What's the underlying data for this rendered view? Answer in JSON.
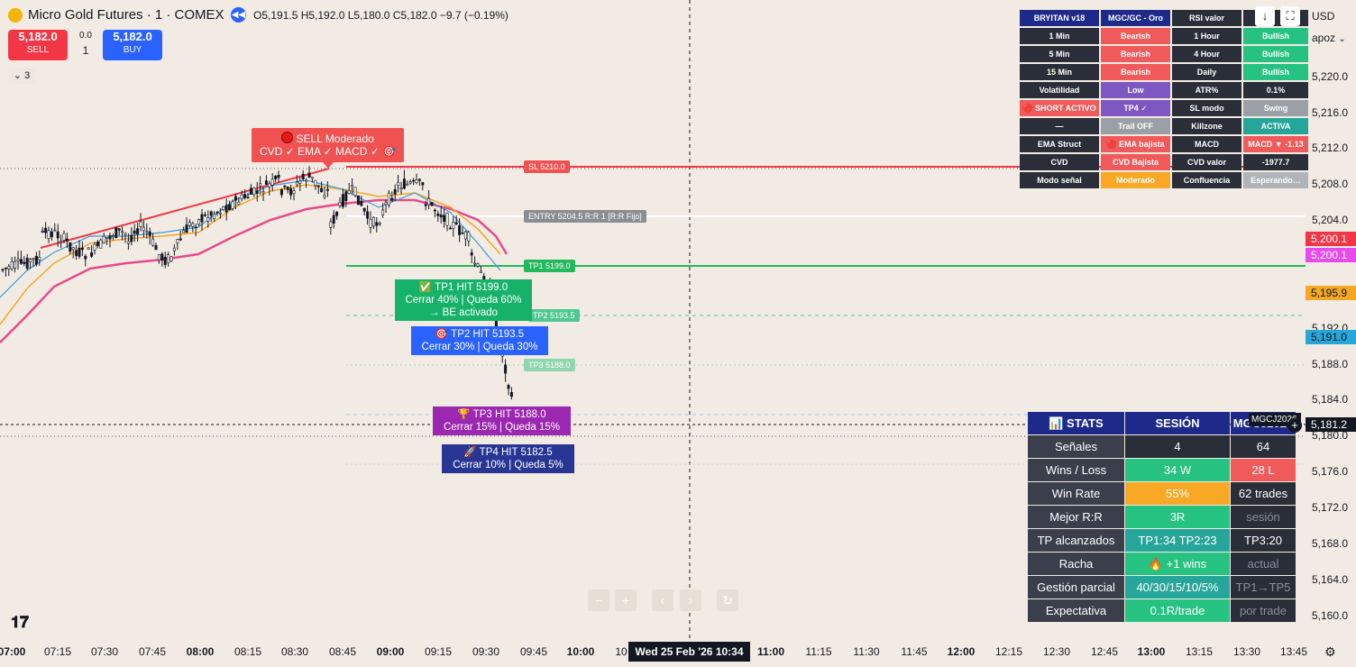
{
  "header": {
    "symbol_title": "Micro Gold Futures · 1 · COMEX",
    "ohlc": "O5,191.5  H5,192.0  L5,180.0  C5,182.0  −9.7 (−0.19%)",
    "sell_price": "5,182.0",
    "sell_label": "SELL",
    "buy_price": "5,182.0",
    "buy_label": "BUY",
    "spread": "0.0",
    "qty": "1",
    "collapsed_count": "3"
  },
  "top_right": {
    "currency": "USD",
    "menu": "apoz"
  },
  "indicator_table": {
    "rows": [
      [
        "BRYITAN v18",
        "MGC/GC - Oro",
        "RSI valor",
        ""
      ],
      [
        "1 Min",
        "Bearish",
        "1 Hour",
        "Bullish"
      ],
      [
        "5 Min",
        "Bearish",
        "4 Hour",
        "Bullish"
      ],
      [
        "15 Min",
        "Bearish",
        "Daily",
        "Bullish"
      ],
      [
        "Volatilidad",
        "Low",
        "ATR%",
        "0.1%"
      ],
      [
        "🔴 SHORT ACTIVO",
        "TP4 ✓",
        "SL modo",
        "Swing"
      ],
      [
        "—",
        "Trail OFF",
        "Killzone",
        "ACTIVA"
      ],
      [
        "EMA Struct",
        "🔴 EMA bajista",
        "MACD",
        "MACD ▼ -1.13"
      ],
      [
        "CVD",
        "CVD Bajista",
        "CVD valor",
        "-1977.7"
      ],
      [
        "Modo señal",
        "Moderado",
        "Confluencia",
        "Esperando…"
      ]
    ]
  },
  "stats_table": {
    "header": [
      "📊 STATS",
      "SESIÓN",
      "MGCJ2026"
    ],
    "rows": [
      [
        "Señales",
        "4",
        "64"
      ],
      [
        "Wins / Loss",
        "34 W",
        "28 L"
      ],
      [
        "Win Rate",
        "55%",
        "62 trades"
      ],
      [
        "Mejor R:R",
        "3R",
        "sesión"
      ],
      [
        "TP alcanzados",
        "TP1:34  TP2:23",
        "TP3:20"
      ],
      [
        "Racha",
        "🔥 +1 wins",
        "actual"
      ],
      [
        "Gestión parcial",
        "40/30/15/10/5%",
        "TP1→TP5"
      ],
      [
        "Expectativa",
        "0.1R/trade",
        "por trade"
      ]
    ]
  },
  "signal": {
    "line1": "SELL  Moderado",
    "line2": "CVD ✓  EMA ✓  MACD ✓  🎯"
  },
  "levels": {
    "sl": "SL 5210.0",
    "entry": "ENTRY 5204.5  R:R 1  [R:R Fijo]",
    "tp1": "TP1 5199.0",
    "tp2": "TP2 5193.5",
    "tp3": "TP3 5188.0"
  },
  "hits": {
    "tp1_l1": "✅ TP1 HIT 5199.0",
    "tp1_l2": "Cerrar 40%  |  Queda 60%",
    "tp1_l3": "→ BE activado",
    "tp2_l1": "🎯 TP2 HIT 5193.5",
    "tp2_l2": "Cerrar 30%  |  Queda 30%",
    "tp3_l1": "🏆 TP3 HIT 5188.0",
    "tp3_l2": "Cerrar 15%  |  Queda 15%",
    "tp4_l1": "🚀 TP4 HIT 5182.5",
    "tp4_l2": "Cerrar 10%  |  Queda 5%"
  },
  "price_axis": {
    "ticks": [
      "5,220.0",
      "5,216.0",
      "5,212.0",
      "5,208.0",
      "5,204.0",
      "5,192.0",
      "5,188.0",
      "5,184.0",
      "5,180.0",
      "5,176.0",
      "5,172.0",
      "5,168.0",
      "5,164.0",
      "5,160.0"
    ],
    "label_red": "5,200.1",
    "label_pink": "5,200.1",
    "label_orange": "5,195.9",
    "label_blue": "5,191.0",
    "label_current": "5,181.2",
    "symbol_tag": "MGCJ2026"
  },
  "time_axis": {
    "ticks": [
      "07:00",
      "07:15",
      "07:30",
      "07:45",
      "08:00",
      "08:15",
      "08:30",
      "08:45",
      "09:00",
      "09:15",
      "09:30",
      "09:45",
      "10:00",
      "10",
      "11:00",
      "11:15",
      "11:30",
      "11:45",
      "12:00",
      "12:15",
      "12:30",
      "12:45",
      "13:00",
      "13:15",
      "13:30",
      "13:45"
    ],
    "cursor_time": "Wed 25 Feb '26   10:34"
  },
  "colors": {
    "background": "#f2ebe3",
    "sell": "#f23645",
    "buy": "#2962ff",
    "sl_line": "#f23645",
    "tp1_line": "#22b85c"
  }
}
